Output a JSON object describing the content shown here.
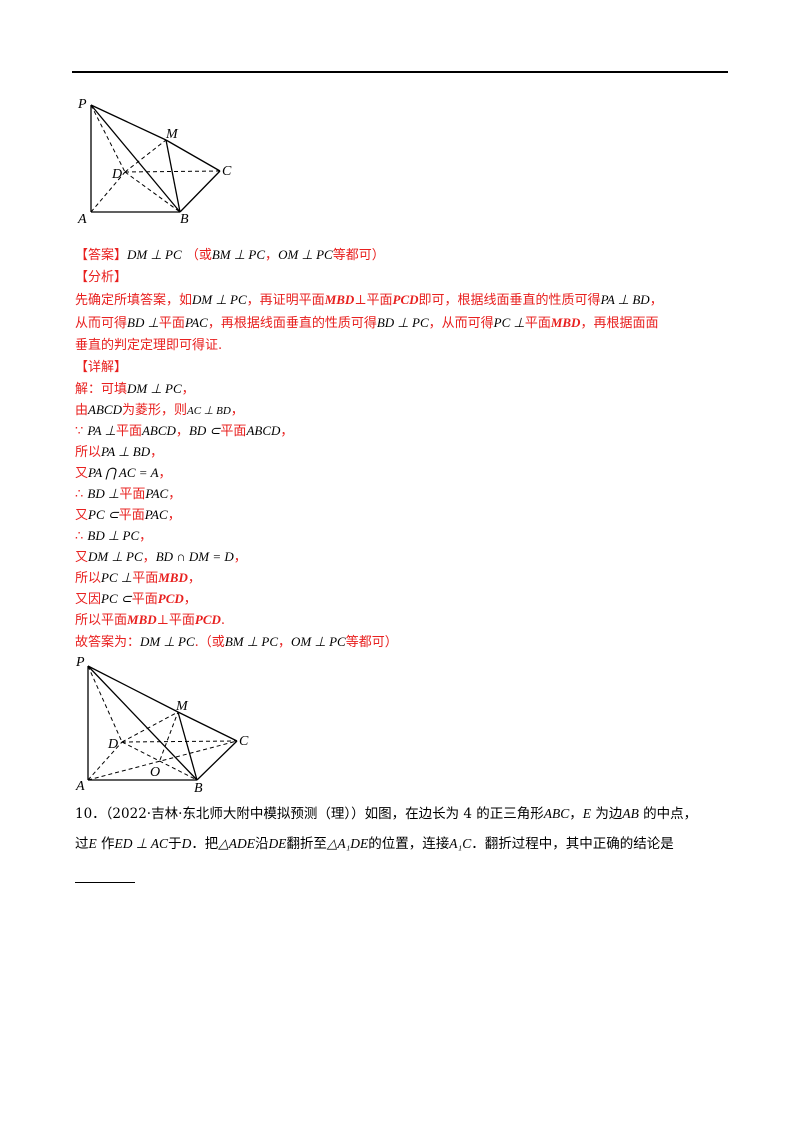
{
  "figure1": {
    "labels": {
      "P": "P",
      "M": "M",
      "D": "D",
      "C": "C",
      "A": "A",
      "B": "B"
    }
  },
  "figure2": {
    "labels": {
      "P": "P",
      "M": "M",
      "D": "D",
      "C": "C",
      "O": "O",
      "A": "A",
      "B": "B"
    }
  },
  "answer": {
    "tag": "【答案】",
    "main": "DM ⊥ PC",
    "alt_open": "（或",
    "alt1": "BM ⊥ PC",
    "comma": "，",
    "alt2": "OM ⊥ PC",
    "alt_close": "等都可）"
  },
  "analysis": {
    "tag": "【分析】",
    "line1": {
      "a": "先确定所填答案，如",
      "m1": "DM ⊥ PC",
      "b": "，再证明平面",
      "m2": "MBD",
      "c": "⊥平面",
      "m3": "PCD",
      "d": "即可，根据线面垂直的性质可得",
      "m4": "PA ⊥ BD",
      "e": "，"
    },
    "line2": {
      "a": "从而可得",
      "m1": "BD ⊥",
      "b": "平面",
      "m2": "PAC",
      "c": "，再根据线面垂直的性质可得",
      "m3": "BD ⊥ PC",
      "d": "，从而可得",
      "m4": "PC ⊥",
      "e": "平面",
      "m5": "MBD",
      "f": "，再根据面面"
    },
    "line3": "垂直的判定定理即可得证."
  },
  "detail": {
    "tag": "【详解】",
    "l1": {
      "a": "解：可填",
      "m": "DM ⊥ PC",
      "b": "，"
    },
    "l2": {
      "a": "由",
      "m1": "ABCD",
      "b": "为菱形，则",
      "m2": "AC ⊥ BD",
      "c": "，"
    },
    "l3": {
      "a": "∵ ",
      "m1": "PA ⊥",
      "b": "平面",
      "m2": "ABCD",
      "c": "，",
      "m3": "BD ⊂",
      "d": "平面",
      "m4": "ABCD",
      "e": "，"
    },
    "l4": {
      "a": "所以",
      "m": "PA ⊥ BD",
      "b": "，"
    },
    "l5": {
      "a": "又",
      "m": "PA ⋂ AC = A",
      "b": "，"
    },
    "l6": {
      "a": "∴ ",
      "m1": "BD ⊥",
      "b": "平面",
      "m2": "PAC",
      "c": "，"
    },
    "l7": {
      "a": "又",
      "m1": "PC ⊂",
      "b": "平面",
      "m2": "PAC",
      "c": "，"
    },
    "l8": {
      "a": "∴ ",
      "m": "BD ⊥ PC",
      "b": "，"
    },
    "l9": {
      "a": "又",
      "m1": "DM ⊥ PC",
      "b": "，",
      "m2": "BD ∩ DM = D",
      "c": "，"
    },
    "l10": {
      "a": "所以",
      "m1": "PC ⊥",
      "b": "平面",
      "m2": "MBD",
      "c": "，"
    },
    "l11": {
      "a": "又因",
      "m1": "PC ⊂",
      "b": "平面",
      "m2": "PCD",
      "c": "，"
    },
    "l12": {
      "a": "所以平面",
      "m1": "MBD",
      "b": "⊥平面",
      "m2": "PCD",
      "c": "."
    },
    "l13": {
      "a": "故答案为：",
      "m1": "DM ⊥ PC",
      "b": ".（或",
      "m2": "BM ⊥ PC",
      "c": "，",
      "m3": "OM ⊥ PC",
      "d": "等都可）"
    }
  },
  "problem10": {
    "line1": {
      "a": "10．（2022·吉林·东北师大附中模拟预测（理））如图，在边长为 4 的正三角形",
      "m1": "ABC",
      "b": "，",
      "m2": "E",
      "c": " 为边",
      "m3": "AB",
      "d": " 的中点，"
    },
    "line2": {
      "a": "过",
      "m1": "E",
      "b": " 作",
      "m2": "ED ⊥ AC",
      "c": "于",
      "m3": "D",
      "d": "．把",
      "m4": "△ADE",
      "e": "沿",
      "m5": "DE",
      "f": "翻折至",
      "m6": "△A₁DE",
      "g": "的位置，连接",
      "m7": "A₁C",
      "h": "．翻折过程中，其中正确的结论是"
    }
  }
}
